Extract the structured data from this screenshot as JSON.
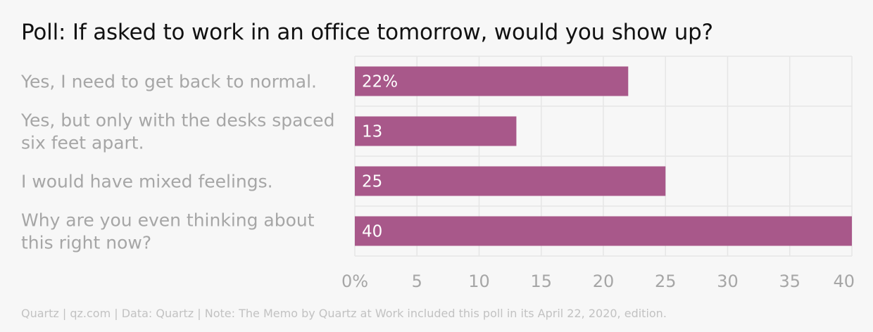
{
  "chart_data": {
    "type": "bar",
    "orientation": "horizontal",
    "title": "Poll: If asked to work in an office tomorrow, would you show up?",
    "categories": [
      [
        "Yes, I need to get back to normal."
      ],
      [
        "Yes, but only with the desks spaced",
        "six feet apart."
      ],
      [
        "I would have mixed feelings."
      ],
      [
        "Why are you even thinking about",
        "this right now?"
      ]
    ],
    "values": [
      22,
      13,
      25,
      40
    ],
    "value_labels": [
      "22%",
      "13",
      "25",
      "40"
    ],
    "xlim": [
      0,
      40
    ],
    "x_ticks": [
      0,
      5,
      10,
      15,
      20,
      25,
      30,
      35,
      40
    ],
    "x_tick_labels": [
      "0%",
      "5",
      "10",
      "15",
      "20",
      "25",
      "30",
      "35",
      "40"
    ],
    "grid": true,
    "bar_color": "#a8588a"
  },
  "footer": "Quartz | qz.com | Data: Quartz | Note: The Memo by Quartz at Work included this poll in its April 22, 2020, edition."
}
